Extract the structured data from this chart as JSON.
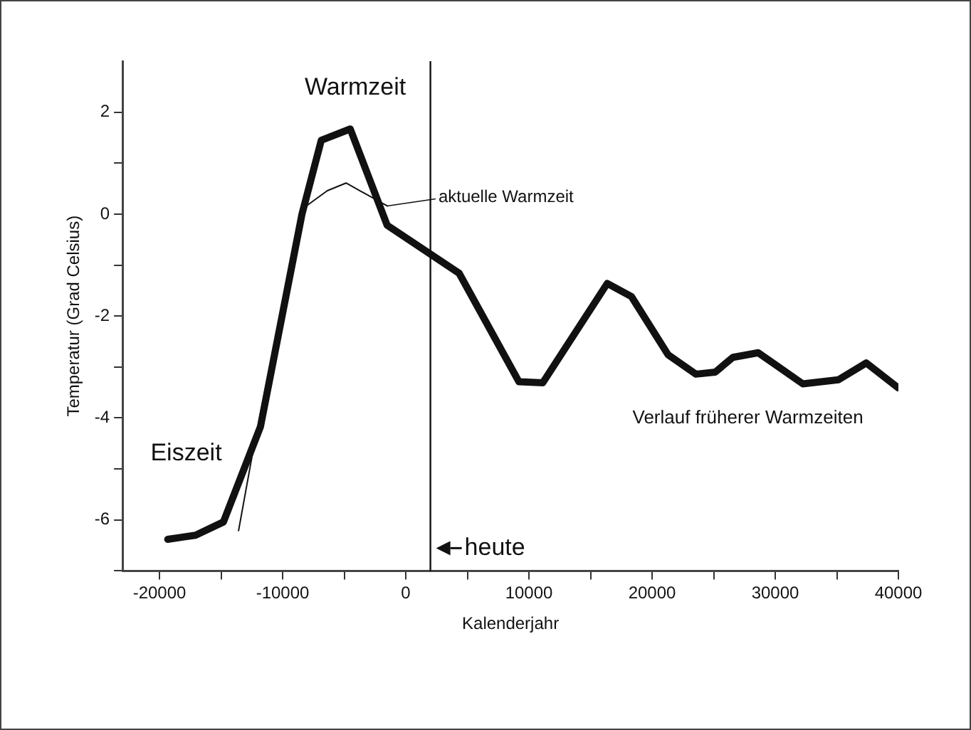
{
  "chart_data": {
    "type": "line",
    "xlabel": "Kalenderjahr",
    "ylabel": "Temperatur (Grad Celsius)",
    "series": [
      {
        "color": "#111111",
        "x": [
          -19330,
          -17070,
          -14810,
          -11800,
          -8430,
          -6860,
          -4510,
          -1510,
          4330,
          9190,
          11120,
          16360,
          18330,
          21300,
          23560,
          25130,
          26560,
          28620,
          32240,
          35130,
          37390,
          40000
        ],
        "values": [
          -6.38,
          -6.3,
          -6.04,
          -4.17,
          0.0,
          1.45,
          1.67,
          -0.22,
          -1.16,
          -3.29,
          -3.31,
          -1.36,
          -1.62,
          -2.76,
          -3.14,
          -3.1,
          -2.81,
          -2.72,
          -3.33,
          -3.25,
          -2.92,
          -3.41
        ]
      },
      {
        "color": "#111111",
        "x": [
          -13580,
          -12340,
          -8640,
          -8020,
          -6370,
          -4850,
          -1510
        ],
        "values": [
          -6.21,
          -4.56,
          -0.09,
          0.17,
          0.46,
          0.61,
          0.16
        ]
      }
    ],
    "xlim": [
      -23000,
      40000
    ],
    "xticks": [
      -20000,
      {
        "value": -15000,
        "label": null
      },
      -10000,
      {
        "value": -5000,
        "label": null
      },
      0,
      {
        "value": 5000,
        "label": null
      },
      10000,
      {
        "value": 15000,
        "label": null
      },
      20000,
      {
        "value": 25000,
        "label": null
      },
      30000,
      {
        "value": 35000,
        "label": null
      },
      40000
    ],
    "ylim": [
      -7,
      3
    ],
    "yticks": [
      {
        "value": -7,
        "label": null
      },
      -6,
      {
        "value": -5,
        "label": null
      },
      -4,
      {
        "value": -3,
        "label": null
      },
      -2,
      {
        "value": -1,
        "label": null
      },
      0,
      {
        "value": 1,
        "label": null
      },
      2
    ],
    "grid": false,
    "legend": false,
    "marker": "none",
    "line_style": "solid",
    "ref_lines": [
      {
        "axis": "x",
        "value": 2000,
        "label": "heute",
        "color": "#111111"
      }
    ],
    "annotations": [
      "Warmzeit",
      "Eiszeit",
      {
        "text": "aktuelle Warmzeit",
        "x": -1510,
        "y": 0.16
      },
      "Verlauf früherer Warmzeiten"
    ]
  }
}
